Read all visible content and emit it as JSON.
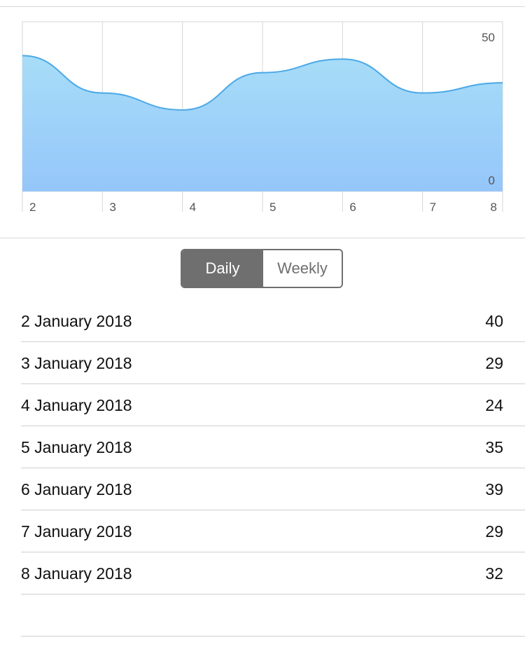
{
  "chart_data": {
    "type": "area",
    "categories": [
      "2",
      "3",
      "4",
      "5",
      "6",
      "7",
      "8"
    ],
    "values": [
      40,
      29,
      24,
      35,
      39,
      29,
      32
    ],
    "ylim": [
      0,
      50
    ],
    "y_tick_labels": [
      "50",
      "0"
    ],
    "grid": true,
    "fill_color_top": "#A7DDF7",
    "fill_color_bottom": "#95C6FA",
    "line_color": "#4BA8E8",
    "title": "",
    "xlabel": "",
    "ylabel": ""
  },
  "toggle": {
    "daily_label": "Daily",
    "weekly_label": "Weekly",
    "selected": "Daily",
    "active_color": "#6F6F6F"
  },
  "rows": [
    {
      "date": "2 January 2018",
      "value": "40"
    },
    {
      "date": "3 January 2018",
      "value": "29"
    },
    {
      "date": "4 January 2018",
      "value": "24"
    },
    {
      "date": "5 January 2018",
      "value": "35"
    },
    {
      "date": "6 January 2018",
      "value": "39"
    },
    {
      "date": "7 January 2018",
      "value": "29"
    },
    {
      "date": "8 January 2018",
      "value": "32"
    }
  ]
}
